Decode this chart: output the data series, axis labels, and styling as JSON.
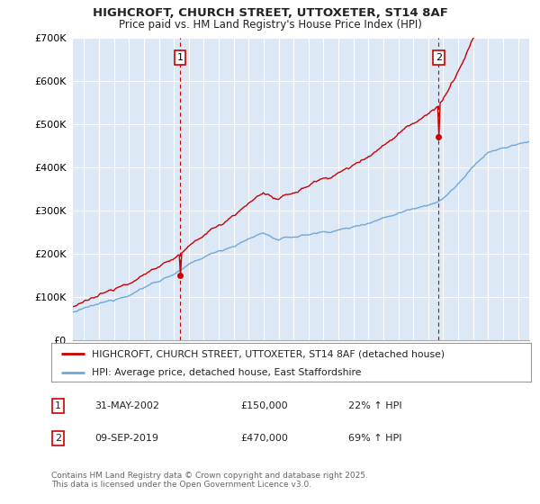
{
  "title_line1": "HIGHCROFT, CHURCH STREET, UTTOXETER, ST14 8AF",
  "title_line2": "Price paid vs. HM Land Registry's House Price Index (HPI)",
  "ylim": [
    0,
    700000
  ],
  "yticks": [
    0,
    100000,
    200000,
    300000,
    400000,
    500000,
    600000,
    700000
  ],
  "ytick_labels": [
    "£0",
    "£100K",
    "£200K",
    "£300K",
    "£400K",
    "£500K",
    "£600K",
    "£700K"
  ],
  "xlim_start": 1995.25,
  "xlim_end": 2025.75,
  "sale1_year": 2002.42,
  "sale1_price": 150000,
  "sale1_label": "1",
  "sale2_year": 2019.69,
  "sale2_price": 470000,
  "sale2_label": "2",
  "property_color": "#cc0000",
  "hpi_color": "#6fa8dc",
  "chart_bg": "#dce8f5",
  "legend_property": "HIGHCROFT, CHURCH STREET, UTTOXETER, ST14 8AF (detached house)",
  "legend_hpi": "HPI: Average price, detached house, East Staffordshire",
  "table_row1": [
    "1",
    "31-MAY-2002",
    "£150,000",
    "22% ↑ HPI"
  ],
  "table_row2": [
    "2",
    "09-SEP-2019",
    "£470,000",
    "69% ↑ HPI"
  ],
  "footer": "Contains HM Land Registry data © Crown copyright and database right 2025.\nThis data is licensed under the Open Government Licence v3.0.",
  "background_color": "#ffffff",
  "grid_color": "#ffffff"
}
